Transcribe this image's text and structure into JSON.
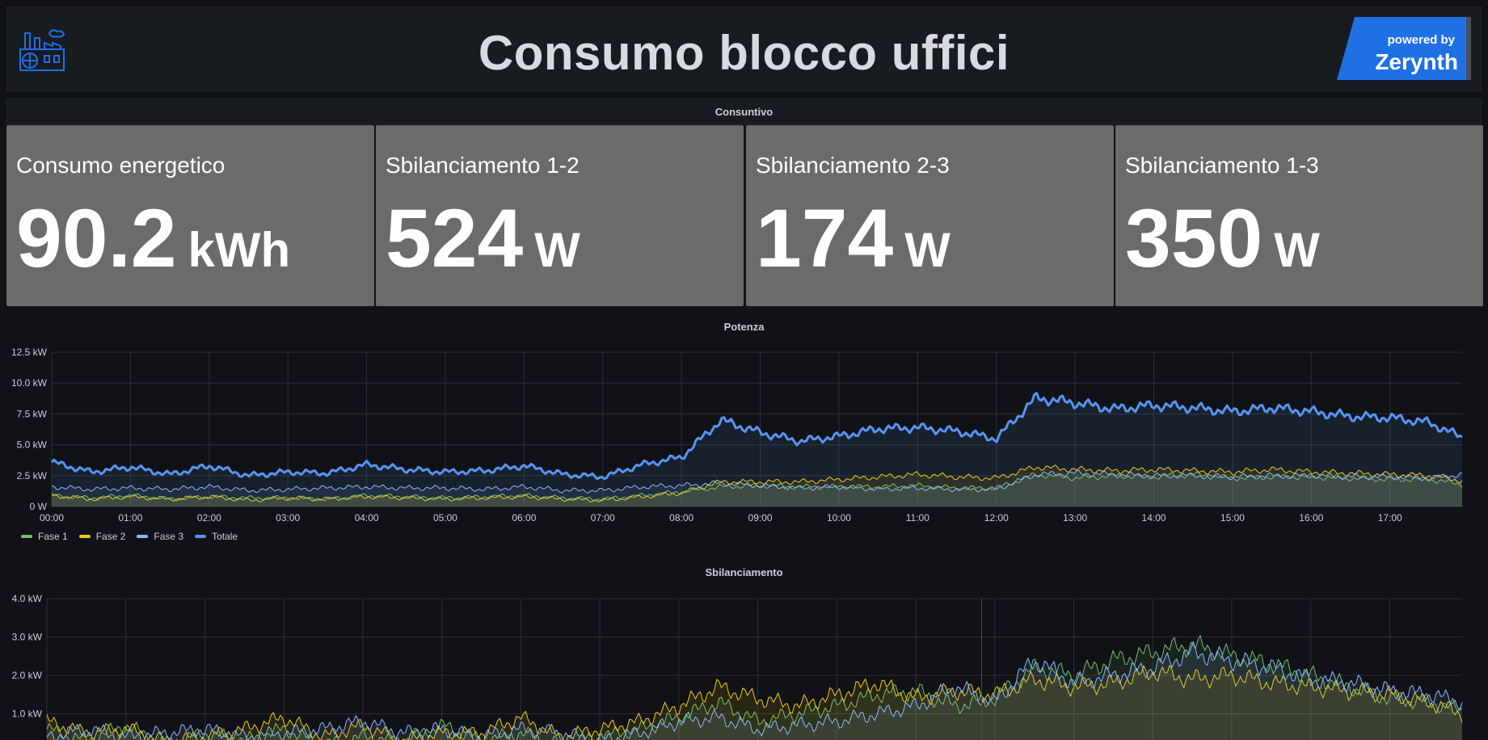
{
  "header": {
    "title": "Consumo blocco uffici",
    "brand_line1": "powered by",
    "brand_line2": "Zerynth",
    "icon": "factory-icon",
    "brand_color": "#1f6fe5"
  },
  "consuntivo": {
    "title": "Consuntivo",
    "stats": [
      {
        "label": "Consumo energetico",
        "value": "90.2",
        "unit": "kWh"
      },
      {
        "label": "Sbilanciamento 1-2",
        "value": "524",
        "unit": "W"
      },
      {
        "label": "Sbilanciamento 2-3",
        "value": "174",
        "unit": "W"
      },
      {
        "label": "Sbilanciamento 1-3",
        "value": "350",
        "unit": "W"
      }
    ]
  },
  "potenza": {
    "title": "Potenza",
    "legend": [
      {
        "name": "Fase 1",
        "color": "#73bf69"
      },
      {
        "name": "Fase 2",
        "color": "#f2cc0c"
      },
      {
        "name": "Fase 3",
        "color": "#8ab8ff"
      },
      {
        "name": "Totale",
        "color": "#5794f2"
      }
    ]
  },
  "sbilanciamento": {
    "title": "Sbilanciamento"
  },
  "chart_data": [
    {
      "type": "line",
      "title": "Potenza",
      "yticks": [
        "0 W",
        "2.5 kW",
        "5.0 kW",
        "7.5 kW",
        "10.0 kW",
        "12.5 kW"
      ],
      "ylim": [
        0,
        12.5
      ],
      "xticks": [
        "00:00",
        "01:00",
        "02:00",
        "03:00",
        "04:00",
        "05:00",
        "06:00",
        "07:00",
        "08:00",
        "09:00",
        "10:00",
        "11:00",
        "12:00",
        "13:00",
        "14:00",
        "15:00",
        "16:00",
        "17:00"
      ],
      "x": [
        "00:00",
        "00:30",
        "01:00",
        "01:30",
        "02:00",
        "02:30",
        "03:00",
        "03:30",
        "04:00",
        "04:30",
        "05:00",
        "05:30",
        "06:00",
        "06:30",
        "07:00",
        "07:30",
        "08:00",
        "08:30",
        "09:00",
        "09:30",
        "10:00",
        "10:30",
        "11:00",
        "11:30",
        "12:00",
        "12:30",
        "13:00",
        "13:30",
        "14:00",
        "14:30",
        "15:00",
        "15:30",
        "16:00",
        "16:30",
        "17:00",
        "17:30",
        "17:55"
      ],
      "series": [
        {
          "name": "Totale",
          "color": "#5794f2",
          "values": [
            3.6,
            2.8,
            3.2,
            2.6,
            3.3,
            2.5,
            2.8,
            2.7,
            3.4,
            3.0,
            2.8,
            2.9,
            3.3,
            2.6,
            2.4,
            3.4,
            4.0,
            7.0,
            6.0,
            5.3,
            5.7,
            6.3,
            6.4,
            6.1,
            5.5,
            8.8,
            8.4,
            7.9,
            8.2,
            8.0,
            7.7,
            8.0,
            7.7,
            7.3,
            7.2,
            6.8,
            5.6
          ]
        },
        {
          "name": "Fase 1",
          "color": "#73bf69",
          "values": [
            0.9,
            0.7,
            0.9,
            0.6,
            0.8,
            0.7,
            0.7,
            0.6,
            0.9,
            0.8,
            0.7,
            0.8,
            0.9,
            0.7,
            0.6,
            0.9,
            1.2,
            1.6,
            1.7,
            1.6,
            1.6,
            1.6,
            1.7,
            1.5,
            1.5,
            2.6,
            2.3,
            2.5,
            2.4,
            2.6,
            2.3,
            2.4,
            2.4,
            2.3,
            2.2,
            2.2,
            1.8
          ]
        },
        {
          "name": "Fase 2",
          "color": "#f2cc0c",
          "values": [
            0.9,
            0.6,
            0.8,
            0.6,
            0.8,
            0.5,
            0.7,
            0.6,
            0.8,
            0.7,
            0.6,
            0.7,
            0.8,
            0.6,
            0.5,
            0.8,
            1.1,
            2.0,
            2.0,
            2.0,
            2.2,
            2.4,
            2.6,
            2.4,
            2.3,
            3.2,
            3.0,
            2.9,
            3.0,
            2.9,
            2.8,
            3.0,
            2.8,
            2.7,
            2.6,
            2.5,
            2.1
          ]
        },
        {
          "name": "Fase 3",
          "color": "#8ab8ff",
          "values": [
            1.6,
            1.4,
            1.5,
            1.4,
            1.6,
            1.3,
            1.4,
            1.5,
            1.6,
            1.5,
            1.5,
            1.4,
            1.6,
            1.3,
            1.3,
            1.6,
            1.7,
            1.9,
            1.7,
            1.5,
            1.6,
            1.4,
            1.5,
            1.4,
            1.4,
            2.6,
            2.7,
            2.6,
            2.5,
            2.5,
            2.4,
            2.5,
            2.5,
            2.4,
            2.4,
            2.3,
            2.6
          ]
        }
      ]
    },
    {
      "type": "line",
      "title": "Sbilanciamento",
      "yticks": [
        "1.0 kW",
        "2.0 kW",
        "3.0 kW",
        "4.0 kW"
      ],
      "ylim": [
        0,
        4.0
      ],
      "x": [
        "00:00",
        "00:30",
        "01:00",
        "01:30",
        "02:00",
        "02:30",
        "03:00",
        "03:30",
        "04:00",
        "04:30",
        "05:00",
        "05:30",
        "06:00",
        "06:30",
        "07:00",
        "07:30",
        "08:00",
        "08:30",
        "09:00",
        "09:30",
        "10:00",
        "10:30",
        "11:00",
        "11:30",
        "12:00",
        "12:30",
        "13:00",
        "13:30",
        "14:00",
        "14:30",
        "15:00",
        "15:30",
        "16:00",
        "16:30",
        "17:00",
        "17:30",
        "17:55"
      ],
      "series": [
        {
          "name": "",
          "color": "#73bf69",
          "values": [
            0.6,
            0.3,
            0.7,
            0.2,
            0.5,
            0.3,
            0.6,
            0.2,
            0.4,
            0.3,
            0.7,
            0.3,
            0.5,
            0.2,
            0.4,
            0.6,
            0.9,
            1.3,
            0.8,
            1.0,
            1.2,
            1.5,
            1.6,
            1.2,
            1.4,
            2.2,
            2.0,
            2.4,
            2.6,
            2.8,
            2.5,
            2.3,
            2.0,
            1.7,
            1.4,
            1.3,
            1.1
          ]
        },
        {
          "name": "",
          "color": "#f2cc0c",
          "values": [
            0.8,
            0.5,
            0.6,
            0.3,
            0.4,
            0.6,
            0.9,
            0.4,
            0.7,
            0.3,
            0.5,
            0.5,
            0.9,
            0.4,
            0.6,
            0.8,
            1.2,
            1.7,
            1.4,
            1.2,
            1.5,
            1.8,
            1.4,
            1.6,
            1.5,
            1.9,
            1.7,
            1.8,
            2.1,
            1.9,
            2.0,
            1.8,
            1.7,
            1.6,
            1.5,
            1.3,
            1.0
          ]
        },
        {
          "name": "",
          "color": "#8ab8ff",
          "values": [
            0.4,
            0.6,
            0.4,
            0.5,
            0.6,
            0.4,
            0.5,
            0.6,
            0.8,
            0.5,
            0.6,
            0.4,
            0.6,
            0.5,
            0.3,
            0.5,
            0.8,
            0.9,
            0.6,
            0.7,
            0.8,
            1.0,
            1.2,
            1.7,
            1.3,
            2.4,
            1.8,
            2.0,
            2.2,
            2.6,
            2.4,
            2.2,
            1.9,
            1.8,
            1.6,
            1.5,
            1.3
          ]
        }
      ]
    }
  ]
}
